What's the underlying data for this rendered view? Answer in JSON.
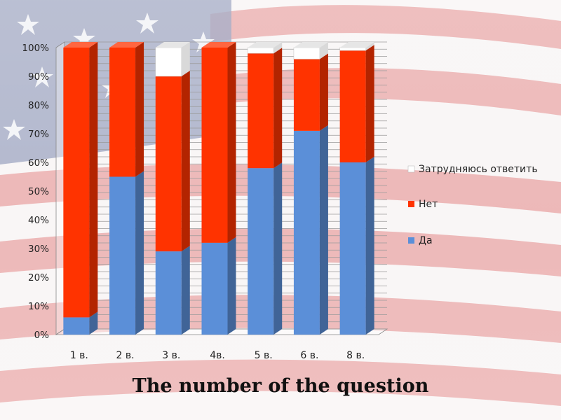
{
  "chart_data": {
    "type": "bar",
    "stacked": true,
    "percent": true,
    "categories": [
      "1 в.",
      "2 в.",
      "3 в.",
      "4в.",
      "5 в.",
      "6 в.",
      "8 в."
    ],
    "series": [
      {
        "name": "Да",
        "color": "#5b8fd8",
        "values": [
          6,
          55,
          29,
          32,
          58,
          71,
          60
        ]
      },
      {
        "name": "Нет",
        "color": "#ff3300",
        "values": [
          94,
          45,
          61,
          68,
          40,
          25,
          39
        ]
      },
      {
        "name": "Затрудняюсь ответить",
        "color": "#ffffff",
        "values": [
          0,
          0,
          10,
          0,
          2,
          4,
          1
        ]
      }
    ],
    "y_ticks": [
      "0%",
      "10%",
      "20%",
      "30%",
      "40%",
      "50%",
      "60%",
      "70%",
      "80%",
      "90%",
      "100%"
    ],
    "ylim": [
      0,
      100
    ],
    "grid": true,
    "legend_position": "right",
    "xlabel": "The number of the question"
  }
}
